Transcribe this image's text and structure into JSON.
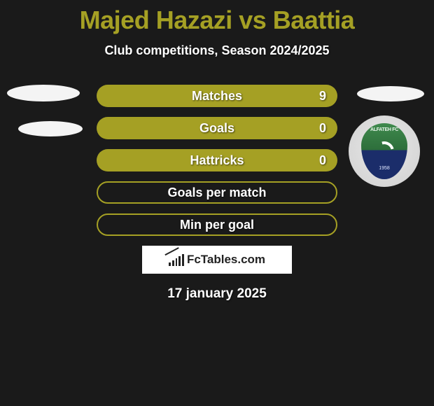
{
  "title_color": "#a5a024",
  "title": "Majed Hazazi vs Baattia",
  "subtitle": "Club competitions, Season 2024/2025",
  "accent_color": "#a5a024",
  "background_color": "#1a1a1a",
  "stats": [
    {
      "label": "Matches",
      "value": "9",
      "filled": true,
      "show_value": true
    },
    {
      "label": "Goals",
      "value": "0",
      "filled": true,
      "show_value": true
    },
    {
      "label": "Hattricks",
      "value": "0",
      "filled": true,
      "show_value": true
    },
    {
      "label": "Goals per match",
      "value": "",
      "filled": false,
      "show_value": false
    },
    {
      "label": "Min per goal",
      "value": "",
      "filled": false,
      "show_value": false
    }
  ],
  "crest": {
    "top_text": "ALFATEH FC",
    "year": "1958"
  },
  "site_logo_text": "FcTables.com",
  "date": "17 january 2025"
}
